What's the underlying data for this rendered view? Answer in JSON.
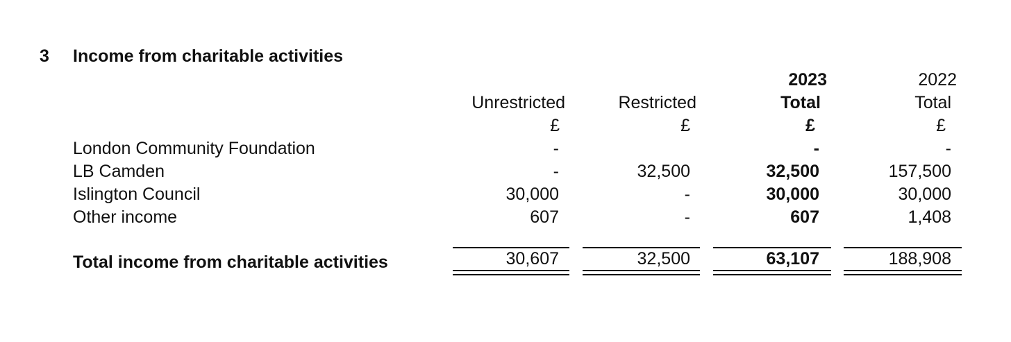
{
  "section": {
    "number": "3",
    "title": "Income from charitable activities"
  },
  "columns": [
    {
      "year": "",
      "heading": "Unrestricted",
      "unit": "£"
    },
    {
      "year": "",
      "heading": "Restricted",
      "unit": "£"
    },
    {
      "year": "2023",
      "heading": "Total",
      "unit": "£"
    },
    {
      "year": "2022",
      "heading": "Total",
      "unit": "£"
    }
  ],
  "rows": [
    {
      "label": "London Community Foundation",
      "values": [
        "-",
        "",
        "-",
        "-"
      ]
    },
    {
      "label": "LB Camden",
      "values": [
        "-",
        "32,500",
        "32,500",
        "157,500"
      ]
    },
    {
      "label": "Islington Council",
      "values": [
        "30,000",
        "-",
        "30,000",
        "30,000"
      ]
    },
    {
      "label": "Other income",
      "values": [
        "607",
        "-",
        "607",
        "1,408"
      ]
    }
  ],
  "total": {
    "label": "Total income from charitable activities",
    "values": [
      "30,607",
      "32,500",
      "63,107",
      "188,908"
    ]
  }
}
